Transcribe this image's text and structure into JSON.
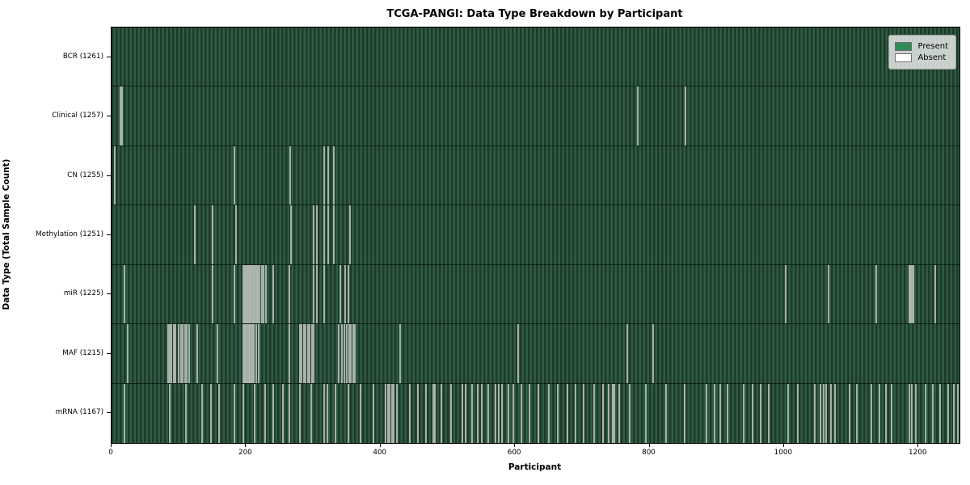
{
  "title": "TCGA-PANGI: Data Type Breakdown by Participant",
  "xlabel": "Participant",
  "ylabel": "Data Type (Total Sample Count)",
  "legend": {
    "items": [
      {
        "label": "Present",
        "color": "#2e8b57"
      },
      {
        "label": "Absent",
        "color": "#ffffff"
      }
    ]
  },
  "colors": {
    "present_fill": "#2e8b57",
    "absent_fill": "#ffffff",
    "bar_stripe_dark": "#1e3a29",
    "bar_stripe_light": "#2e5c42",
    "absent_streak": "#b4bab4",
    "frame": "#000000",
    "legend_bg": "#e0e4e0"
  },
  "chart_data": {
    "type": "heatmap",
    "title": "TCGA-PANGI: Data Type Breakdown by Participant",
    "xlabel": "Participant",
    "ylabel": "Data Type (Total Sample Count)",
    "legend_position": "upper right",
    "x_range": [
      0,
      1261
    ],
    "x_ticks": [
      0,
      200,
      400,
      600,
      800,
      1000,
      1200
    ],
    "total_participants": 1261,
    "rows": [
      {
        "label": "BCR (1261)",
        "data_type": "BCR",
        "present_count": 1261,
        "absent_count": 0,
        "absent_positions": []
      },
      {
        "label": "Clinical (1257)",
        "data_type": "Clinical",
        "present_count": 1257,
        "absent_count": 4,
        "absent_positions": [
          13,
          16,
          783,
          853
        ]
      },
      {
        "label": "CN (1255)",
        "data_type": "CN",
        "present_count": 1255,
        "absent_count": 6,
        "absent_positions": [
          5,
          183,
          266,
          316,
          322,
          330
        ]
      },
      {
        "label": "Methylation (1251)",
        "data_type": "Methylation",
        "present_count": 1251,
        "absent_count": 10,
        "absent_positions": [
          124,
          150,
          185,
          267,
          300,
          305,
          316,
          322,
          330,
          355
        ]
      },
      {
        "label": "miR (1225)",
        "data_type": "miR",
        "present_count": 1225,
        "absent_count": 36,
        "absent_positions": [
          19,
          150,
          183,
          196,
          198,
          200,
          202,
          203,
          205,
          206,
          208,
          210,
          212,
          214,
          216,
          218,
          220,
          223,
          226,
          230,
          241,
          265,
          300,
          305,
          316,
          340,
          347,
          352,
          1002,
          1066,
          1137,
          1186,
          1188,
          1190,
          1192,
          1225
        ]
      },
      {
        "label": "MAF (1215)",
        "data_type": "MAF",
        "present_count": 1215,
        "absent_count": 46,
        "absent_positions": [
          24,
          84,
          87,
          89,
          92,
          95,
          100,
          103,
          106,
          109,
          112,
          115,
          127,
          158,
          196,
          198,
          200,
          202,
          204,
          206,
          208,
          210,
          212,
          215,
          219,
          265,
          280,
          283,
          286,
          289,
          292,
          295,
          298,
          300,
          338,
          342,
          346,
          350,
          353,
          356,
          359,
          362,
          429,
          605,
          767,
          806
        ]
      },
      {
        "label": "mRNA (1167)",
        "data_type": "mRNA",
        "present_count": 1167,
        "absent_count": 94,
        "absent_positions": [
          19,
          87,
          111,
          135,
          148,
          160,
          183,
          196,
          213,
          228,
          241,
          255,
          265,
          280,
          297,
          316,
          321,
          333,
          352,
          370,
          389,
          408,
          411,
          414,
          417,
          420,
          424,
          443,
          455,
          468,
          479,
          481,
          490,
          505,
          522,
          526,
          536,
          544,
          551,
          560,
          571,
          576,
          581,
          590,
          598,
          610,
          622,
          635,
          650,
          664,
          678,
          690,
          702,
          718,
          731,
          739,
          745,
          748,
          755,
          770,
          795,
          825,
          852,
          885,
          897,
          905,
          916,
          940,
          953,
          965,
          977,
          1006,
          1020,
          1046,
          1054,
          1059,
          1063,
          1070,
          1076,
          1098,
          1108,
          1130,
          1142,
          1152,
          1160,
          1186,
          1190,
          1196,
          1210,
          1221,
          1232,
          1244,
          1252,
          1258
        ]
      }
    ]
  }
}
